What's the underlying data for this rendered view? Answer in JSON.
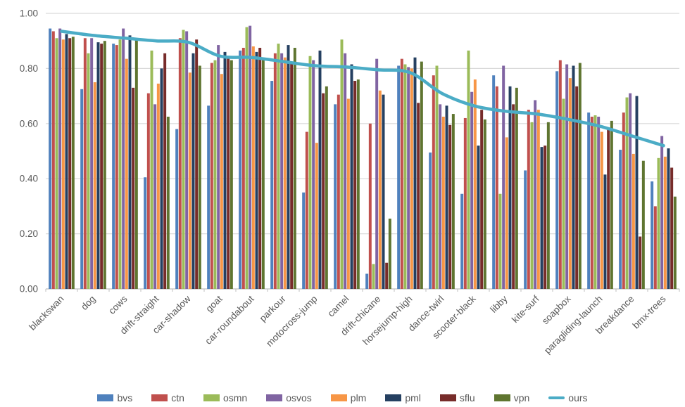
{
  "chart_data": {
    "type": "bar",
    "title": "",
    "xlabel": "",
    "ylabel": "",
    "ylim": [
      0.0,
      1.0
    ],
    "y_tick_step": 0.2,
    "y_tick_labels": [
      "0.00",
      "0.20",
      "0.40",
      "0.60",
      "0.80",
      "1.00"
    ],
    "grid": true,
    "legend_position": "bottom",
    "categories": [
      "blackswan",
      "dog",
      "cows",
      "drift-straight",
      "car-shadow",
      "goat",
      "car-roundabout",
      "parkour",
      "motocross-jump",
      "camel",
      "drift-chicane",
      "horsejump-high",
      "dance-twirl",
      "scooter-black",
      "libby",
      "kite-surf",
      "soapbox",
      "paragliding-launch",
      "breakdance",
      "bmx-trees"
    ],
    "series": [
      {
        "name": "bvs",
        "color": "#4F81BD",
        "values": [
          0.945,
          0.725,
          0.89,
          0.405,
          0.58,
          0.665,
          0.865,
          0.755,
          0.35,
          0.67,
          0.055,
          0.81,
          0.495,
          0.345,
          0.775,
          0.43,
          0.79,
          0.64,
          0.505,
          0.39
        ]
      },
      {
        "name": "ctn",
        "color": "#C0504D",
        "values": [
          0.935,
          0.91,
          0.885,
          0.71,
          0.91,
          0.82,
          0.875,
          0.855,
          0.57,
          0.705,
          0.6,
          0.835,
          0.775,
          0.62,
          0.735,
          0.65,
          0.83,
          0.625,
          0.64,
          0.3
        ]
      },
      {
        "name": "osmn",
        "color": "#9BBB59",
        "values": [
          0.91,
          0.855,
          0.905,
          0.865,
          0.94,
          0.83,
          0.95,
          0.89,
          0.845,
          0.905,
          0.09,
          0.815,
          0.81,
          0.865,
          0.345,
          0.605,
          0.69,
          0.63,
          0.695,
          0.475
        ]
      },
      {
        "name": "osvos",
        "color": "#8064A2",
        "values": [
          0.945,
          0.91,
          0.945,
          0.67,
          0.935,
          0.885,
          0.955,
          0.855,
          0.83,
          0.855,
          0.835,
          0.805,
          0.67,
          0.715,
          0.81,
          0.685,
          0.815,
          0.625,
          0.71,
          0.555
        ]
      },
      {
        "name": "plm",
        "color": "#F79646",
        "values": [
          0.905,
          0.75,
          0.835,
          0.745,
          0.785,
          0.78,
          0.88,
          0.84,
          0.53,
          0.69,
          0.72,
          0.8,
          0.625,
          0.76,
          0.55,
          0.65,
          0.765,
          0.57,
          0.49,
          0.48
        ]
      },
      {
        "name": "pml",
        "color": "#254061",
        "values": [
          0.925,
          0.895,
          0.92,
          0.8,
          0.855,
          0.86,
          0.86,
          0.885,
          0.865,
          0.815,
          0.705,
          0.84,
          0.665,
          0.52,
          0.735,
          0.515,
          0.81,
          0.415,
          0.7,
          0.51
        ]
      },
      {
        "name": "sflu",
        "color": "#772C2A",
        "values": [
          0.91,
          0.89,
          0.73,
          0.855,
          0.905,
          0.84,
          0.875,
          0.82,
          0.71,
          0.755,
          0.095,
          0.675,
          0.595,
          0.65,
          0.67,
          0.52,
          0.735,
          0.58,
          0.19,
          0.44
        ]
      },
      {
        "name": "vpn",
        "color": "#5F7530",
        "values": [
          0.915,
          0.9,
          0.91,
          0.625,
          0.81,
          0.83,
          0.835,
          0.875,
          0.735,
          0.76,
          0.255,
          0.825,
          0.635,
          0.615,
          0.73,
          0.605,
          0.82,
          0.61,
          0.465,
          0.335
        ]
      }
    ],
    "line_series": {
      "name": "ours",
      "color": "#4BACC6",
      "values": [
        0.935,
        0.92,
        0.91,
        0.9,
        0.895,
        0.845,
        0.84,
        0.825,
        0.81,
        0.805,
        0.795,
        0.785,
        0.71,
        0.665,
        0.645,
        0.635,
        0.615,
        0.59,
        0.555,
        0.52
      ]
    }
  },
  "legend": {
    "items": [
      {
        "label": "bvs",
        "color": "#4F81BD",
        "marker": "rect"
      },
      {
        "label": "ctn",
        "color": "#C0504D",
        "marker": "rect"
      },
      {
        "label": "osmn",
        "color": "#9BBB59",
        "marker": "rect"
      },
      {
        "label": "osvos",
        "color": "#8064A2",
        "marker": "rect"
      },
      {
        "label": "plm",
        "color": "#F79646",
        "marker": "rect"
      },
      {
        "label": "pml",
        "color": "#254061",
        "marker": "rect"
      },
      {
        "label": "sflu",
        "color": "#772C2A",
        "marker": "rect"
      },
      {
        "label": "vpn",
        "color": "#5F7530",
        "marker": "rect"
      },
      {
        "label": "ours",
        "color": "#4BACC6",
        "marker": "line"
      }
    ]
  },
  "style_colors": {
    "gridline": "#D9D9D9",
    "axis_line": "#BFBFBF",
    "tick_label": "#595959",
    "background": "#FFFFFF"
  }
}
